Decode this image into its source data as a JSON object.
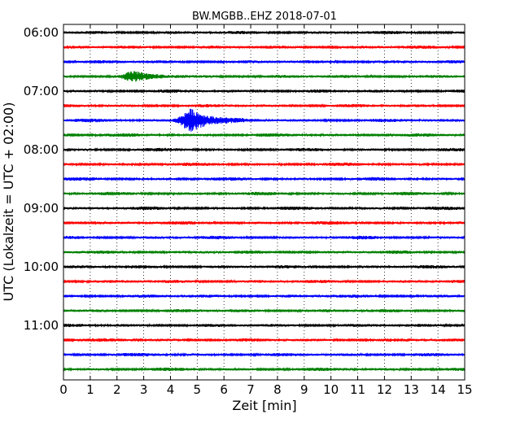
{
  "chart_data": {
    "type": "line",
    "title": "BW.MGBB..EHZ 2018-07-01",
    "xlabel": "Zeit  [min]",
    "ylabel": "UTC (Lokalzeit = UTC + 02:00)",
    "xlim": [
      0,
      15
    ],
    "xticks": [
      "0",
      "1",
      "2",
      "3",
      "4",
      "5",
      "6",
      "7",
      "8",
      "9",
      "10",
      "11",
      "12",
      "13",
      "14",
      "15"
    ],
    "ytick_labels": [
      "06:00",
      "07:00",
      "08:00",
      "09:00",
      "10:00",
      "11:00"
    ],
    "trace_interval_minutes": 15,
    "start_time": "06:00",
    "trace_count": 24,
    "trace_colors": [
      "#000000",
      "#ff0000",
      "#0000ff",
      "#008000"
    ],
    "grid": "vertical dotted",
    "events": [
      {
        "trace": 6,
        "time_min": 4.8,
        "amplitude": 1.0,
        "label": ""
      },
      {
        "trace": 3,
        "time_min": 2.65,
        "amplitude": 0.35,
        "label": ""
      }
    ]
  }
}
